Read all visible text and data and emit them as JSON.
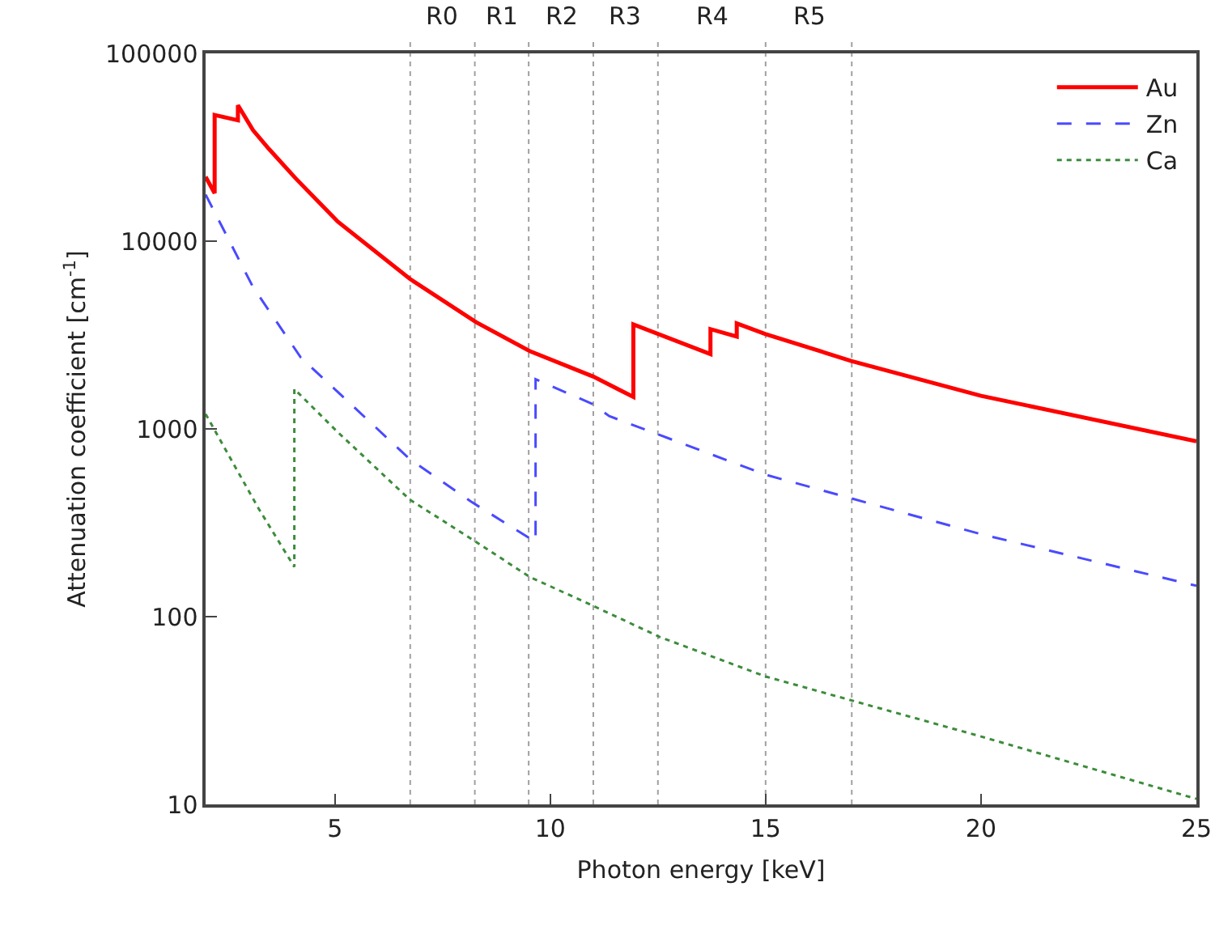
{
  "chart_data": {
    "type": "line",
    "xlabel": "Photon energy [keV]",
    "ylabel": "Attenuation coefficient [cm$^{-1}$]",
    "xlim": [
      2,
      25
    ],
    "xticks": [
      5,
      10,
      15,
      20,
      25
    ],
    "ylim": [
      10,
      100000
    ],
    "yticks": [
      10,
      100,
      1000,
      10000,
      100000
    ],
    "log": "y",
    "ref_lines": [
      {
        "axis": "x",
        "value": 6.75,
        "label": "R0",
        "color": "#a0a0a0",
        "line_style": "dotted"
      },
      {
        "axis": "x",
        "value": 8.25,
        "label": "R1",
        "color": "#a0a0a0",
        "line_style": "dotted"
      },
      {
        "axis": "x",
        "value": 9.5,
        "label": "R2",
        "color": "#a0a0a0",
        "line_style": "dotted"
      },
      {
        "axis": "x",
        "value": 11,
        "label": "R3",
        "color": "#a0a0a0",
        "line_style": "dotted"
      },
      {
        "axis": "x",
        "value": 12.5,
        "label": "R4",
        "color": "#a0a0a0",
        "line_style": "dotted"
      },
      {
        "axis": "x",
        "value": 15,
        "label": "R5",
        "color": "#a0a0a0",
        "line_style": "dotted"
      },
      {
        "axis": "x",
        "value": 17,
        "color": "#a0a0a0",
        "line_style": "dotted"
      }
    ],
    "legend": "top right",
    "grid": false,
    "marker": "none",
    "series": [
      {
        "name": "Au",
        "color": "#ff0000",
        "line_style": "solid",
        "x": [
          2.0,
          2.21,
          2.21,
          2.75,
          2.75,
          3.1,
          3.47,
          4.09,
          5.07,
          6.74,
          8.28,
          9.52,
          11.0,
          11.93,
          11.93,
          13.72,
          13.72,
          14.33,
          14.33,
          15.0,
          16.99,
          20.0,
          25.0
        ],
        "values": [
          22000,
          18000,
          47000,
          44000,
          53000,
          39000,
          31000,
          21600,
          12700,
          6300,
          3700,
          2600,
          1900,
          1480,
          3600,
          2500,
          3400,
          3100,
          3650,
          3200,
          2300,
          1500,
          860
        ]
      },
      {
        "name": "Zn",
        "color": "#4a4aff",
        "line_style": "dashed",
        "x": [
          2.0,
          3.1,
          4.21,
          6.74,
          8.16,
          9.66,
          9.66,
          11.0,
          11.37,
          15.0,
          20.0,
          25.0
        ],
        "values": [
          17700,
          5700,
          2400,
          690,
          410,
          250,
          1840,
          1350,
          1170,
          570,
          275,
          146
        ]
      },
      {
        "name": "Ca",
        "color": "#3c8c3c",
        "line_style": "dotted",
        "x": [
          2.0,
          3.22,
          4.06,
          4.06,
          5.07,
          6.74,
          8.28,
          9.52,
          11.0,
          12.54,
          15.0,
          20.0,
          25.0
        ],
        "values": [
          1200,
          380,
          184,
          1630,
          960,
          420,
          250,
          163,
          114,
          78,
          48,
          23,
          10.7
        ]
      }
    ]
  }
}
